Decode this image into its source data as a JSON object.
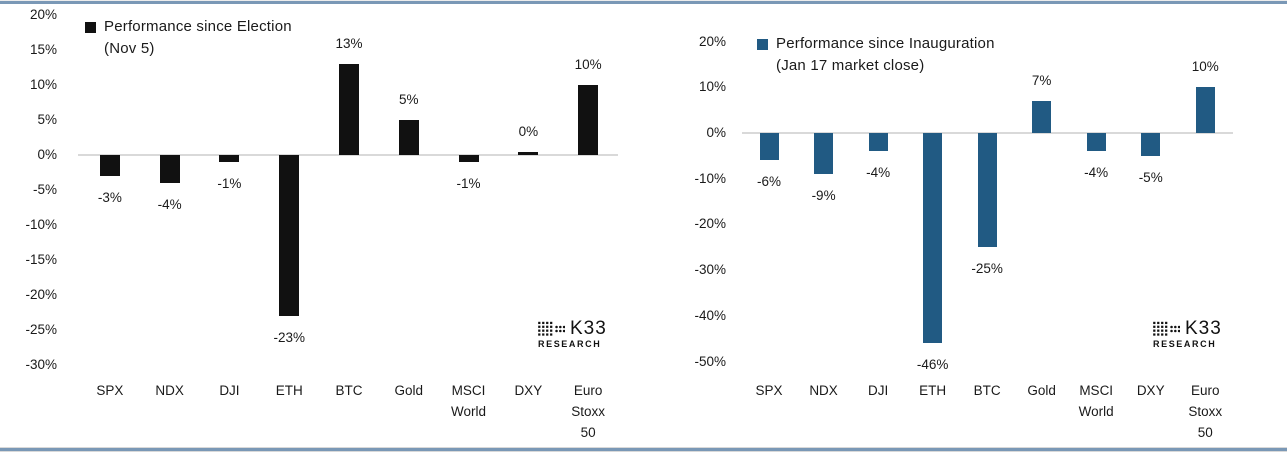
{
  "colors": {
    "axis_line": "#d9d9d9",
    "text": "#1a1a1a",
    "border_line": "#7a98b6",
    "election_bar": "#111111",
    "inauguration_bar": "#215a83"
  },
  "branding": {
    "logo_text": "K33",
    "logo_subtext": "RESEARCH"
  },
  "chart_data": [
    {
      "type": "bar",
      "title": "Performance since Election (Nov 5)",
      "legend_lines": [
        "Performance since Election",
        "(Nov 5)"
      ],
      "legend_position": "top-left",
      "categories": [
        "SPX",
        "NDX",
        "DJI",
        "ETH",
        "BTC",
        "Gold",
        "MSCI World",
        "DXY",
        "Euro Stoxx 50"
      ],
      "values": [
        -3,
        -4,
        -1,
        -23,
        13,
        5,
        -1,
        0,
        10
      ],
      "labels": [
        "-3%",
        "-4%",
        "-1%",
        "-23%",
        "13%",
        "5%",
        "-1%",
        "0%",
        "10%"
      ],
      "bar_color": "#111111",
      "xlabel": "",
      "ylabel": "",
      "ylim": [
        -30,
        20
      ],
      "ytick_step": 5,
      "ytick_format": "percent",
      "grid": false
    },
    {
      "type": "bar",
      "title": "Performance since Inauguration (Jan 17 market close)",
      "legend_lines": [
        "Performance since Inauguration",
        "(Jan 17 market close)"
      ],
      "legend_position": "top-left",
      "categories": [
        "SPX",
        "NDX",
        "DJI",
        "ETH",
        "BTC",
        "Gold",
        "MSCI World",
        "DXY",
        "Euro Stoxx 50"
      ],
      "values": [
        -6,
        -9,
        -4,
        -46,
        -25,
        7,
        -4,
        -5,
        10
      ],
      "labels": [
        "-6%",
        "-9%",
        "-4%",
        "-46%",
        "-25%",
        "7%",
        "-4%",
        "-5%",
        "10%"
      ],
      "bar_color": "#215a83",
      "xlabel": "",
      "ylabel": "",
      "ylim": [
        -50,
        20
      ],
      "ytick_step": 10,
      "ytick_format": "percent",
      "grid": false
    }
  ]
}
